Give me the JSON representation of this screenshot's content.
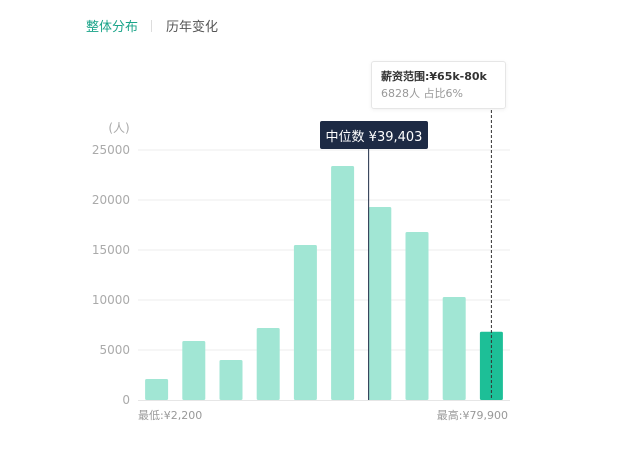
{
  "tabs": [
    {
      "label": "整体分布",
      "active": true
    },
    {
      "label": "历年变化",
      "active": false
    }
  ],
  "colors": {
    "bar": "#a1e6d4",
    "bar_highlight": "#1dbf97",
    "tab_active": "#1aa489",
    "median_bg": "#1d2a44",
    "axis_text": "#aaaaaa",
    "grid": "#eeeeee"
  },
  "tooltip": {
    "title": "薪资范围:¥65k-80k",
    "subtitle": "6828人  占比6%"
  },
  "median_label": "中位数 ¥39,403",
  "chart_data": {
    "type": "bar",
    "ylabel": "(人)",
    "ylim": [
      0,
      25000
    ],
    "yticks": [
      0,
      5000,
      10000,
      15000,
      20000,
      25000
    ],
    "grid": true,
    "values": [
      2100,
      5900,
      4000,
      7200,
      15500,
      23400,
      19300,
      16800,
      10300,
      6828
    ],
    "highlight_index": 9,
    "median_position": 6.2,
    "min_label": "最低:¥2,200",
    "max_label": "最高:¥79,900"
  }
}
